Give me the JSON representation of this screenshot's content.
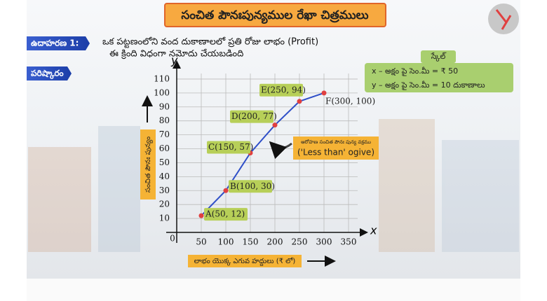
{
  "header": {
    "title": "సంచిత పౌనఃపున్యముల రేఖా చిత్రములు"
  },
  "example": {
    "label": "ఉదాహరణ 1:",
    "lines": [
      "ఒక పట్టణంలోని వంద దుకాణాలలో ప్రతి రోజు లాభం (Profit)",
      "ఈ క్రింది విధంగా నమోదు చేయబడింది"
    ]
  },
  "solution": {
    "label": "పరిష్కారం"
  },
  "scale": {
    "title": "స్కేల్",
    "lines": [
      "x – అక్షం పై సెం.మీ = ₹ 50",
      "y – అక్షం పై సెం.మీ = 10 దుకాణాలు"
    ]
  },
  "chart_data": {
    "type": "line",
    "x_label": "లాభం యొక్క ఎగువ హద్దులు (₹ లో)",
    "y_label": "సంచిత పౌనః పున్యం",
    "x_axis_letter": "x",
    "y_axis_letter": "y",
    "annotation": [
      "ఆరోహణ సంచిత పౌనః పున్య వక్రము",
      "('Less than' ogive)"
    ],
    "x": [
      50,
      100,
      150,
      200,
      250,
      300
    ],
    "series": [
      {
        "name": "'Less than' ogive",
        "color": "#2f4fc8",
        "marker_color": "#e04040",
        "values": [
          12,
          30,
          57,
          77,
          94,
          100
        ],
        "value_labels": [
          "A(50, 12)",
          "B(100, 30)",
          "C(150, 57)",
          "D(200, 77)",
          "E(250, 94)",
          "F(300, 100)"
        ]
      }
    ],
    "xlim": [
      0,
      380
    ],
    "ylim": [
      0,
      118
    ],
    "xticks": [
      0,
      50,
      100,
      150,
      200,
      250,
      300,
      350
    ],
    "yticks": [
      10,
      20,
      30,
      40,
      50,
      60,
      70,
      80,
      90,
      100,
      110
    ],
    "grid": true
  }
}
